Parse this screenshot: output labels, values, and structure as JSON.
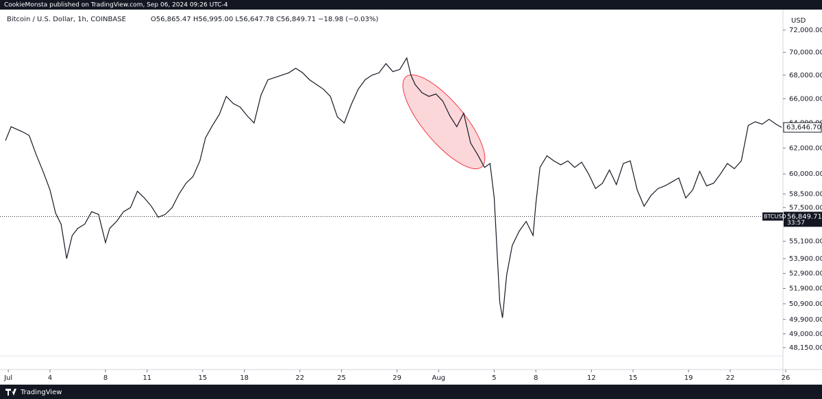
{
  "header": {
    "publisher": "CookieMonsta published on TradingView.com, Sep 06, 2024 09:26 UTC-4",
    "footer": "TradingView"
  },
  "chart_data": {
    "type": "line",
    "title": "Bitcoin / U.S. Dollar, 1h, COINBASE",
    "ohlc": "O56,865.47 H56,995.00 L56,647.78 C56,849.71 −18.98 (−0.03%)",
    "y_unit": "USD",
    "log": true,
    "x": [
      -0.2,
      0.2,
      1.0,
      1.5,
      2.0,
      2.5,
      3.0,
      3.4,
      3.8,
      4.2,
      4.6,
      5.0,
      5.5,
      6.0,
      6.5,
      7.0,
      7.3,
      7.8,
      8.3,
      8.8,
      9.3,
      9.8,
      10.3,
      10.8,
      11.3,
      11.8,
      12.3,
      12.8,
      13.3,
      13.8,
      14.2,
      14.7,
      15.2,
      15.7,
      16.2,
      16.7,
      17.2,
      17.7,
      18.2,
      18.7,
      19.2,
      19.7,
      20.2,
      20.7,
      21.2,
      21.7,
      22.2,
      22.7,
      23.2,
      23.7,
      24.2,
      24.7,
      25.2,
      25.7,
      26.2,
      26.7,
      27.2,
      27.7,
      28.2,
      28.7,
      29.0,
      29.3,
      29.8,
      30.3,
      30.8,
      31.3,
      31.8,
      32.3,
      32.8,
      33.3,
      33.8,
      34.3,
      34.7,
      35.0,
      35.2,
      35.4,
      35.6,
      35.9,
      36.3,
      36.8,
      37.3,
      37.8,
      38.0,
      38.3,
      38.8,
      39.3,
      39.8,
      40.3,
      40.8,
      41.3,
      41.8,
      42.3,
      42.8,
      43.3,
      43.8,
      44.3,
      44.8,
      45.3,
      45.8,
      46.3,
      46.8,
      47.3,
      47.8,
      48.3,
      48.8,
      49.3,
      49.8,
      50.3,
      50.8,
      51.3,
      51.8,
      52.3,
      52.8,
      53.3,
      53.8,
      54.3,
      54.8,
      55.3,
      55.7
    ],
    "series": [
      {
        "color": "#131722",
        "values": [
          62600,
          63700,
          63300,
          63000,
          61500,
          60200,
          58800,
          57100,
          56300,
          53900,
          55500,
          56000,
          56300,
          57200,
          57000,
          55000,
          56000,
          56500,
          57200,
          57500,
          58700,
          58200,
          57600,
          56800,
          57000,
          57500,
          58500,
          59300,
          59800,
          61000,
          62800,
          63800,
          64700,
          66200,
          65600,
          65300,
          64600,
          64000,
          66300,
          67600,
          67800,
          68000,
          68200,
          68600,
          68200,
          67600,
          67200,
          66800,
          66200,
          64500,
          64000,
          65500,
          66800,
          67600,
          68000,
          68200,
          69000,
          68300,
          68500,
          69500,
          68000,
          67200,
          66500,
          66200,
          66400,
          65800,
          64600,
          63700,
          64800,
          62400,
          61500,
          60500,
          60800,
          58200,
          54500,
          51000,
          50000,
          52800,
          54800,
          55800,
          56500,
          55500,
          57800,
          60500,
          61400,
          61000,
          60700,
          61000,
          60500,
          60900,
          60000,
          58900,
          59300,
          60300,
          59200,
          60800,
          61000,
          58800,
          57600,
          58400,
          58900,
          59100,
          59400,
          59700,
          58200,
          58800,
          60200,
          59100,
          59300,
          60000,
          60800,
          60400,
          61000,
          63800,
          64100,
          63900,
          64300,
          63900,
          63650
        ]
      }
    ],
    "xlim": [
      -0.6,
      55.8
    ],
    "xticks": [
      {
        "value": 0,
        "label": "Jul"
      },
      {
        "value": 3,
        "label": "4"
      },
      {
        "value": 7,
        "label": "8"
      },
      {
        "value": 10,
        "label": "11"
      },
      {
        "value": 14,
        "label": "15"
      },
      {
        "value": 17,
        "label": "18"
      },
      {
        "value": 21,
        "label": "22"
      },
      {
        "value": 24,
        "label": "25"
      },
      {
        "value": 28,
        "label": "29"
      },
      {
        "value": 31,
        "label": "Aug"
      },
      {
        "value": 35,
        "label": "5"
      },
      {
        "value": 38,
        "label": "8"
      },
      {
        "value": 42,
        "label": "12"
      },
      {
        "value": 45,
        "label": "15"
      },
      {
        "value": 49,
        "label": "19"
      },
      {
        "value": 52,
        "label": "22"
      },
      {
        "value": 56,
        "label": "26"
      }
    ],
    "ylim": [
      46830,
      73380
    ],
    "yticks": [
      {
        "value": 72000,
        "label": "72,000.00"
      },
      {
        "value": 70000,
        "label": "70,000.00"
      },
      {
        "value": 68000,
        "label": "68,000.00"
      },
      {
        "value": 66000,
        "label": "66,000.00"
      },
      {
        "value": 64000,
        "label": "64,000.00"
      },
      {
        "value": 62000,
        "label": "62,000.00"
      },
      {
        "value": 60000,
        "label": "60,000.00"
      },
      {
        "value": 58500,
        "label": "58,500.00"
      },
      {
        "value": 57500,
        "label": "57,500.00"
      },
      {
        "value": 55100,
        "label": "55,100.00"
      },
      {
        "value": 53900,
        "label": "53,900.00"
      },
      {
        "value": 52900,
        "label": "52,900.00"
      },
      {
        "value": 51900,
        "label": "51,900.00"
      },
      {
        "value": 50900,
        "label": "50,900.00"
      },
      {
        "value": 49900,
        "label": "49,900.00"
      },
      {
        "value": 49000,
        "label": "49,000.00"
      },
      {
        "value": 48150,
        "label": "48,150.00"
      }
    ],
    "last_price": {
      "value": 56849.71,
      "label": "56,849.71",
      "symbol": "BTCUSD",
      "countdown": "33:57"
    },
    "marker_price": {
      "value": 63646.7,
      "label": "63,646.70"
    }
  }
}
